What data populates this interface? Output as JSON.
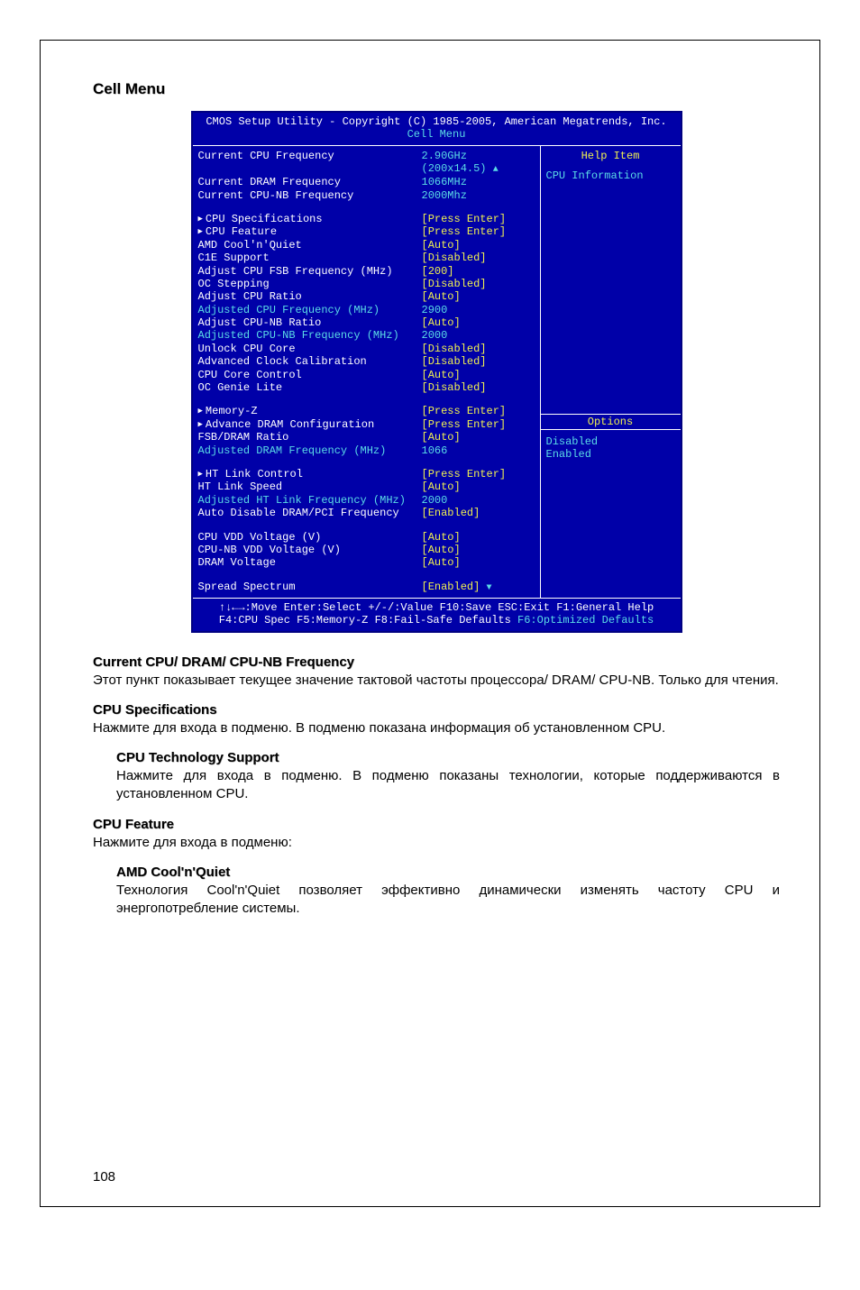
{
  "page_number": "108",
  "section_title": "Cell Menu",
  "bios": {
    "header1_a": "CMOS Setup Utility - Copyright (C) 1985-2005, American Megatrends, Inc.",
    "header2": "Cell Menu",
    "info_rows": [
      {
        "label": "Current CPU Frequency",
        "val": "2.90GHz (200x14.5)",
        "lcolor": "white",
        "vcolor": "cyan"
      },
      {
        "label": "Current DRAM Frequency",
        "val": "1066MHz",
        "lcolor": "white",
        "vcolor": "cyan"
      },
      {
        "label": "Current CPU-NB Frequency",
        "val": "2000Mhz",
        "lcolor": "white",
        "vcolor": "cyan"
      }
    ],
    "group1": [
      {
        "label": "CPU Specifications",
        "val": "[Press Enter]",
        "tri": true,
        "lcolor": "white",
        "vcolor": "yellow"
      },
      {
        "label": "CPU Feature",
        "val": "[Press Enter]",
        "tri": true,
        "lcolor": "white",
        "vcolor": "yellow"
      },
      {
        "label": "AMD Cool'n'Quiet",
        "val": "[Auto]",
        "lcolor": "white",
        "vcolor": "yellow"
      },
      {
        "label": "C1E Support",
        "val": "[Disabled]",
        "lcolor": "white",
        "vcolor": "yellow"
      },
      {
        "label": "Adjust CPU FSB Frequency (MHz)",
        "val": "[200]",
        "lcolor": "white",
        "vcolor": "yellow"
      },
      {
        "label": "OC Stepping",
        "val": "[Disabled]",
        "lcolor": "white",
        "vcolor": "yellow"
      },
      {
        "label": "Adjust CPU Ratio",
        "val": "[Auto]",
        "lcolor": "white",
        "vcolor": "yellow"
      },
      {
        "label": "Adjusted CPU Frequency (MHz)",
        "val": "2900",
        "lcolor": "cyan",
        "vcolor": "cyan"
      },
      {
        "label": "Adjust CPU-NB Ratio",
        "val": "[Auto]",
        "lcolor": "white",
        "vcolor": "yellow"
      },
      {
        "label": "Adjusted CPU-NB Frequency (MHz)",
        "val": "2000",
        "lcolor": "cyan",
        "vcolor": "cyan"
      },
      {
        "label": "Unlock CPU Core",
        "val": "[Disabled]",
        "lcolor": "white",
        "vcolor": "yellow"
      },
      {
        "label": "Advanced Clock Calibration",
        "val": "[Disabled]",
        "lcolor": "white",
        "vcolor": "yellow"
      },
      {
        "label": "CPU Core Control",
        "val": "[Auto]",
        "lcolor": "white",
        "vcolor": "yellow"
      },
      {
        "label": "OC Genie Lite",
        "val": "[Disabled]",
        "lcolor": "white",
        "vcolor": "yellow"
      }
    ],
    "group2": [
      {
        "label": "Memory-Z",
        "val": "[Press Enter]",
        "tri": true,
        "lcolor": "white",
        "vcolor": "yellow"
      },
      {
        "label": "Advance DRAM Configuration",
        "val": "[Press Enter]",
        "tri": true,
        "lcolor": "white",
        "vcolor": "yellow"
      },
      {
        "label": "FSB/DRAM Ratio",
        "val": "[Auto]",
        "lcolor": "white",
        "vcolor": "yellow"
      },
      {
        "label": "Adjusted DRAM Frequency (MHz)",
        "val": "1066",
        "lcolor": "cyan",
        "vcolor": "cyan"
      }
    ],
    "group3": [
      {
        "label": "HT Link Control",
        "val": "[Press Enter]",
        "tri": true,
        "lcolor": "white",
        "vcolor": "yellow"
      },
      {
        "label": "HT Link Speed",
        "val": "[Auto]",
        "lcolor": "white",
        "vcolor": "yellow"
      },
      {
        "label": "Adjusted HT Link Frequency (MHz)",
        "val": "2000",
        "lcolor": "cyan",
        "vcolor": "cyan"
      },
      {
        "label": "Auto Disable DRAM/PCI Frequency",
        "val": "[Enabled]",
        "lcolor": "white",
        "vcolor": "yellow"
      }
    ],
    "group4": [
      {
        "label": "CPU VDD Voltage (V)",
        "val": "[Auto]",
        "lcolor": "white",
        "vcolor": "yellow"
      },
      {
        "label": "CPU-NB VDD Voltage (V)",
        "val": "[Auto]",
        "lcolor": "white",
        "vcolor": "yellow"
      },
      {
        "label": "DRAM Voltage",
        "val": "[Auto]",
        "lcolor": "white",
        "vcolor": "yellow"
      }
    ],
    "group5": [
      {
        "label": "Spread Spectrum",
        "val": "[Enabled]",
        "lcolor": "white",
        "vcolor": "yellow"
      }
    ],
    "help_title": "Help Item",
    "help_body": "CPU Information",
    "options_title": "Options",
    "options": [
      "Disabled",
      "Enabled"
    ],
    "footer1": "↑↓←→:Move  Enter:Select  +/-/:Value  F10:Save  ESC:Exit  F1:General Help",
    "footer2a": "F4:CPU Spec  F5:Memory-Z  F8:Fail-Safe Defaults   ",
    "footer2b": "F6:Optimized Defaults"
  },
  "descriptions": [
    {
      "title": "Current CPU/ DRAM/ CPU-NB Frequency",
      "body": "Этот пункт показывает текущее значение тактовой частоты процессора/ DRAM/ CPU-NB. Только для чтения.",
      "indent": 0
    },
    {
      "title": "CPU Specifications",
      "body": "Нажмите <Enter> для входа в подменю. В подменю показана информация об установленном CPU.",
      "indent": 0
    },
    {
      "title": "CPU Technology Support",
      "body": "Нажмите <Enter> для входа в подменю. В подменю показаны технологии, которые поддерживаются в установленном CPU.",
      "indent": 1
    },
    {
      "title": "CPU Feature",
      "body": "Нажмите <Enter> для входа в подменю:",
      "indent": 0
    },
    {
      "title": "AMD Cool'n'Quiet",
      "body": "Технология Cool'n'Quiet позволяет эффективно динамически изменять частоту CPU и энергопотребление системы.",
      "indent": 1
    }
  ]
}
